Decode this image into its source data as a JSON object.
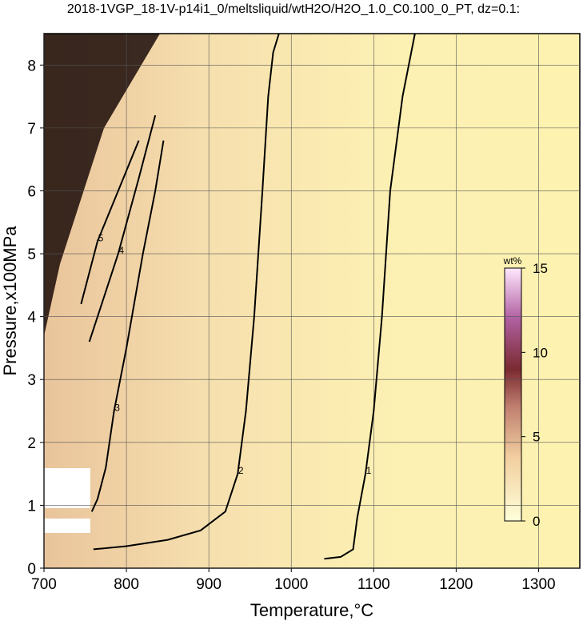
{
  "chart_data": {
    "type": "contour",
    "title": "2018-1VGP_18-1V-p14i1_0/meltsliquid/wtH2O/H2O_1.0_C0.100_0_PT, dz=0.1:",
    "x_label": "Temperature,°C",
    "y_label": "Pressure,x100MPa",
    "xlim": [
      700,
      1350
    ],
    "ylim": [
      0,
      8.5
    ],
    "xticks": [
      700,
      800,
      900,
      1000,
      1100,
      1200,
      1300
    ],
    "yticks": [
      0,
      1,
      2,
      3,
      4,
      5,
      6,
      7,
      8
    ],
    "grid": true,
    "contours": [
      {
        "level": 1,
        "x": [
          1150,
          1135,
          1120,
          1110,
          1100,
          1090,
          1080,
          1075,
          1060,
          1040
        ],
        "y": [
          8.5,
          7.5,
          6,
          4,
          2.5,
          1.5,
          0.8,
          0.3,
          0.18,
          0.15
        ]
      },
      {
        "level": 2,
        "x": [
          985,
          978,
          972,
          965,
          955,
          945,
          935,
          920,
          890,
          850,
          800,
          760
        ],
        "y": [
          8.5,
          8.2,
          7.5,
          6,
          4,
          2.5,
          1.5,
          0.9,
          0.6,
          0.45,
          0.35,
          0.3
        ]
      },
      {
        "level": 3,
        "x": [
          845,
          835,
          820,
          800,
          785,
          775,
          765,
          758
        ],
        "y": [
          6.8,
          6,
          5,
          3.5,
          2.5,
          1.6,
          1.1,
          0.9
        ]
      },
      {
        "level": 4,
        "x": [
          835,
          815,
          790,
          770,
          755
        ],
        "y": [
          7.2,
          6.2,
          5,
          4.2,
          3.6
        ]
      },
      {
        "level": 5,
        "x": [
          815,
          790,
          765,
          745
        ],
        "y": [
          6.8,
          6,
          5.2,
          4.2
        ]
      }
    ],
    "colorbar": {
      "label": "wt%",
      "lim": [
        0,
        15
      ],
      "ticks": [
        0,
        5,
        10,
        15
      ]
    }
  }
}
